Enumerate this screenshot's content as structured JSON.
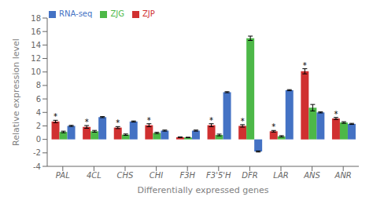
{
  "chart_data": {
    "type": "bar",
    "xlabel": "Differentially expressed genes",
    "ylabel": "Relative expression level",
    "categories": [
      "PAL",
      "4CL",
      "CHS",
      "CHI",
      "F3H",
      "F3'5'H",
      "DFR",
      "LAR",
      "ANS",
      "ANR"
    ],
    "series": [
      {
        "name": "ZJP",
        "color": "#d03030",
        "values": [
          2.65,
          1.85,
          1.75,
          2.1,
          0.32,
          2.1,
          2.0,
          1.2,
          10.1,
          3.1
        ],
        "errors": [
          0.18,
          0.2,
          0.15,
          0.22,
          0.04,
          0.22,
          0.18,
          0.12,
          0.38,
          0.15
        ]
      },
      {
        "name": "ZJG",
        "color": "#4db848",
        "values": [
          1.1,
          1.2,
          0.7,
          0.95,
          0.28,
          0.65,
          15.0,
          0.45,
          4.7,
          2.5
        ],
        "errors": [
          0.12,
          0.13,
          0.1,
          0.1,
          0.04,
          0.13,
          0.32,
          0.1,
          0.48,
          0.12
        ]
      },
      {
        "name": "RNA-seq",
        "color": "#4472c4",
        "values": [
          2.0,
          3.3,
          2.65,
          1.3,
          1.3,
          7.0,
          -1.8,
          7.3,
          4.0,
          2.3
        ],
        "errors": [
          0.08,
          0.08,
          0.08,
          0.08,
          0.08,
          0.08,
          0.08,
          0.08,
          0.08,
          0.08
        ]
      }
    ],
    "annotations": [
      {
        "text": "*",
        "series": "ZJP",
        "category": "PAL"
      },
      {
        "text": "*",
        "series": "ZJP",
        "category": "4CL"
      },
      {
        "text": "*",
        "series": "ZJP",
        "category": "CHS"
      },
      {
        "text": "*",
        "series": "ZJP",
        "category": "CHI"
      },
      {
        "text": "*",
        "series": "ZJP",
        "category": "F3'5'H"
      },
      {
        "text": "*",
        "series": "ZJP",
        "category": "DFR"
      },
      {
        "text": "*",
        "series": "ZJP",
        "category": "LAR"
      },
      {
        "text": "*",
        "series": "ZJP",
        "category": "ANS"
      },
      {
        "text": "*",
        "series": "ZJP",
        "category": "ANR"
      }
    ],
    "ylim": [
      -4,
      18
    ],
    "yticks": [
      -4,
      -2,
      0,
      2,
      4,
      6,
      8,
      10,
      12,
      14,
      16,
      18
    ],
    "legend": "upper left",
    "grid": false
  }
}
